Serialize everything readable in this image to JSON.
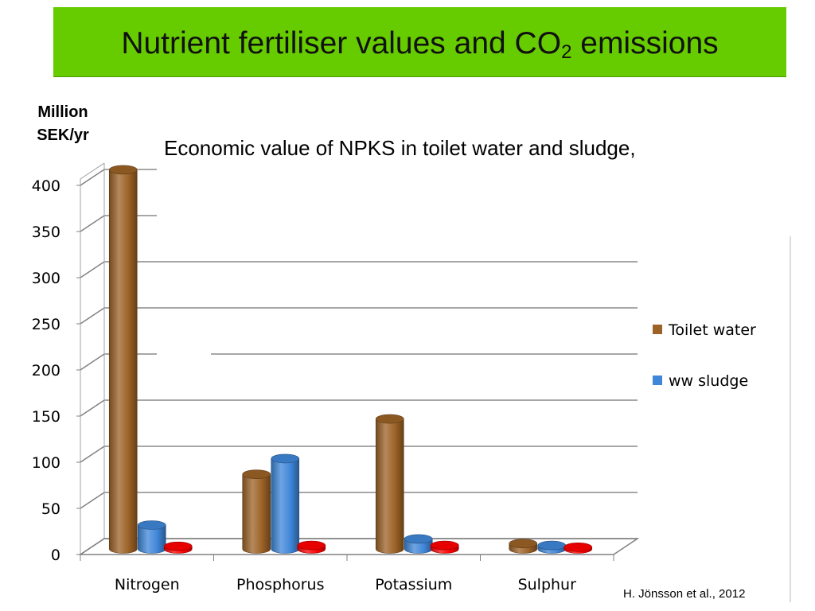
{
  "slide": {
    "title_main": "Nutrient fertiliser values and CO",
    "title_sub": "2",
    "title_end": " emissions",
    "citation": "H. Jönsson et al., 2012"
  },
  "chart_data": {
    "type": "bar",
    "title": "Economic value of NPKS in toilet water and sludge,",
    "ylabel": "Million SEK/yr",
    "xlabel": "",
    "categories": [
      "Nitrogen",
      "Phosphorus",
      "Potassium",
      "Sulphur"
    ],
    "series": [
      {
        "name": "Toilet water",
        "values": [
          410,
          80,
          140,
          5
        ],
        "color": "#9c6226"
      },
      {
        "name": "ww sludge",
        "values": [
          25,
          97,
          10,
          3
        ],
        "color": "#3f86d8"
      },
      {
        "values": [
          2,
          3,
          3,
          1
        ],
        "color": "#ff0000"
      }
    ],
    "ylim": [
      0,
      400
    ],
    "yticks": [
      0,
      50,
      100,
      150,
      200,
      250,
      300,
      350,
      400
    ],
    "grid": true,
    "legend": "right"
  }
}
